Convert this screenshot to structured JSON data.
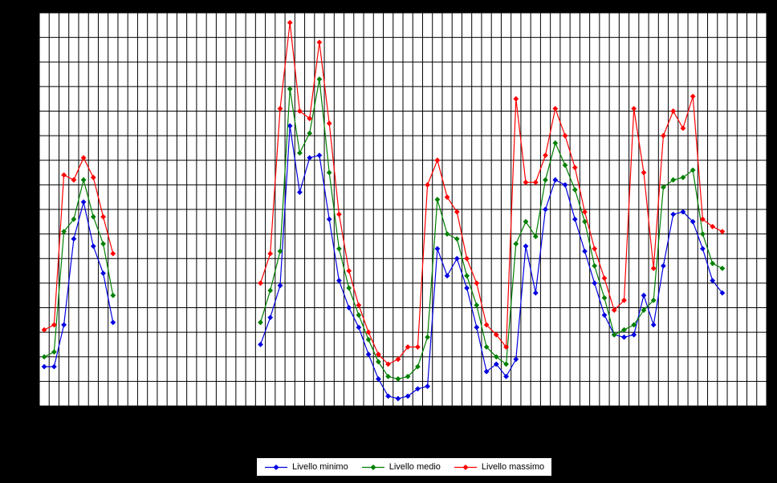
{
  "page": {
    "background_color": "#000000",
    "plot_background": "#ffffff",
    "grid_color": "#000000"
  },
  "chart_data": {
    "type": "line",
    "title": "",
    "xlabel": "",
    "ylabel": "",
    "x_axis": {
      "columns": 74,
      "tick_labels_visible": false
    },
    "y_axis": {
      "rows": 16,
      "ylim": [
        0,
        16
      ],
      "tick_labels_visible": false,
      "units": "gridline rows (axes unlabeled)"
    },
    "grid": "on",
    "gap_slots": [
      8,
      21
    ],
    "legend_position": "bottom-center",
    "series": [
      {
        "name": "Livello minimo",
        "color": "#0000e0",
        "marker": "diamond",
        "values": [
          1.6,
          1.6,
          3.3,
          6.8,
          8.3,
          6.5,
          5.4,
          3.4,
          null,
          null,
          null,
          null,
          null,
          null,
          null,
          null,
          null,
          null,
          null,
          null,
          null,
          null,
          2.5,
          3.6,
          4.9,
          11.4,
          8.7,
          10.1,
          10.2,
          7.6,
          5.1,
          4.0,
          3.2,
          2.1,
          1.1,
          0.4,
          0.3,
          0.4,
          0.7,
          0.8,
          6.4,
          5.3,
          6.0,
          4.8,
          3.2,
          1.4,
          1.7,
          1.2,
          1.9,
          6.5,
          4.6,
          8.0,
          9.2,
          9.0,
          7.6,
          6.3,
          5.0,
          3.7,
          2.9,
          2.8,
          2.9,
          4.5,
          3.3,
          5.7,
          7.8,
          7.9,
          7.5,
          6.4,
          5.1,
          4.6
        ]
      },
      {
        "name": "Livello medio",
        "color": "#008000",
        "marker": "diamond",
        "values": [
          2.0,
          2.2,
          7.1,
          7.6,
          9.2,
          7.7,
          6.6,
          4.5,
          null,
          null,
          null,
          null,
          null,
          null,
          null,
          null,
          null,
          null,
          null,
          null,
          null,
          null,
          3.4,
          4.7,
          6.3,
          12.9,
          10.3,
          11.1,
          13.3,
          9.5,
          6.4,
          4.8,
          3.7,
          2.7,
          1.8,
          1.2,
          1.1,
          1.2,
          1.6,
          2.8,
          8.4,
          7.0,
          6.8,
          5.3,
          4.1,
          2.4,
          2.0,
          1.7,
          6.6,
          7.5,
          6.9,
          9.2,
          10.7,
          9.8,
          8.8,
          7.5,
          5.7,
          4.4,
          2.9,
          3.1,
          3.3,
          3.9,
          4.3,
          8.9,
          9.2,
          9.3,
          9.6,
          7.0,
          5.8,
          5.6
        ]
      },
      {
        "name": "Livello massimo",
        "color": "#ff0000",
        "marker": "diamond",
        "values": [
          3.1,
          3.3,
          9.4,
          9.2,
          10.1,
          9.3,
          7.7,
          6.2,
          null,
          null,
          null,
          null,
          null,
          null,
          null,
          null,
          null,
          null,
          null,
          null,
          null,
          null,
          5.0,
          6.2,
          12.1,
          15.6,
          12.0,
          11.7,
          14.8,
          11.5,
          7.8,
          5.5,
          4.1,
          3.0,
          2.1,
          1.7,
          1.9,
          2.4,
          2.4,
          9.0,
          10.0,
          8.5,
          7.9,
          6.0,
          5.0,
          3.3,
          2.9,
          2.4,
          12.5,
          9.1,
          9.1,
          10.2,
          12.1,
          11.0,
          9.7,
          7.9,
          6.4,
          5.2,
          3.9,
          4.3,
          12.1,
          9.5,
          5.6,
          11.0,
          12.0,
          11.3,
          12.6,
          7.6,
          7.3,
          7.1
        ]
      }
    ]
  }
}
